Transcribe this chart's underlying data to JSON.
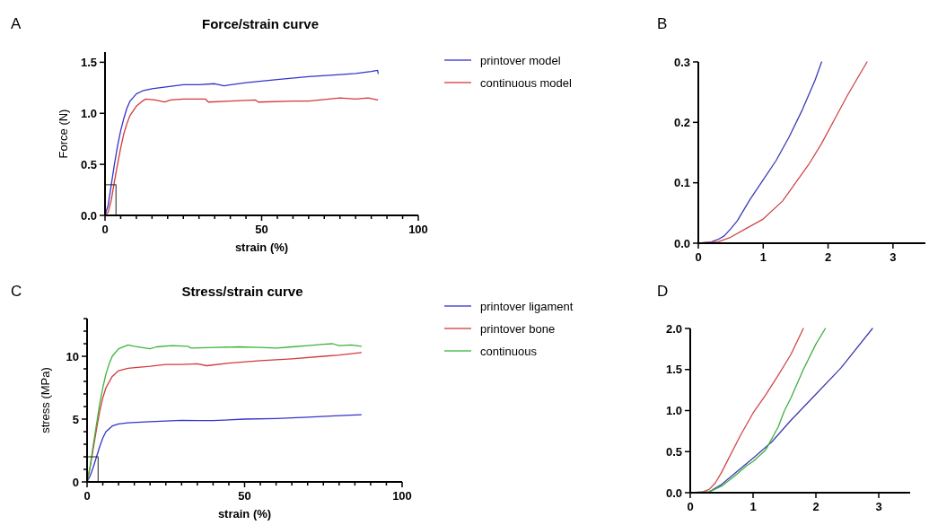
{
  "chart_data": [
    {
      "type": "line",
      "title": "Force/strain curve",
      "annotations": [
        "A"
      ],
      "xlabel": "strain (%)",
      "ylabel": "Force (N)",
      "xlim": [
        0,
        100
      ],
      "ylim": [
        0,
        1.6
      ],
      "xticks": [
        0,
        {
          "value": 5,
          "label": null
        },
        {
          "value": 10,
          "label": null
        },
        {
          "value": 15,
          "label": null
        },
        {
          "value": 20,
          "label": null
        },
        {
          "value": 25,
          "label": null
        },
        {
          "value": 30,
          "label": null
        },
        {
          "value": 35,
          "label": null
        },
        {
          "value": 40,
          "label": null
        },
        {
          "value": 45,
          "label": null
        },
        50,
        {
          "value": 55,
          "label": null
        },
        {
          "value": 60,
          "label": null
        },
        {
          "value": 65,
          "label": null
        },
        {
          "value": 70,
          "label": null
        },
        {
          "value": 75,
          "label": null
        },
        {
          "value": 80,
          "label": null
        },
        {
          "value": 85,
          "label": null
        },
        {
          "value": 90,
          "label": null
        },
        {
          "value": 95,
          "label": null
        },
        100
      ],
      "yticks": [
        {
          "value": 0,
          "label": "0.0"
        },
        {
          "value": 0.5,
          "label": "0.5"
        },
        {
          "value": 1,
          "label": "1.0"
        },
        {
          "value": 1.5,
          "label": "1.5"
        }
      ],
      "legend": "right",
      "grid": false,
      "line_style": "solid",
      "series": [
        {
          "name": "printover model",
          "color": "#3434cc",
          "x": [
            0,
            1,
            2,
            3,
            4,
            5,
            6,
            7,
            8,
            10,
            12,
            15,
            20,
            25,
            30,
            35,
            38,
            45,
            55,
            65,
            75,
            80,
            85,
            87,
            87.2
          ],
          "values": [
            0,
            0.1,
            0.3,
            0.5,
            0.68,
            0.83,
            0.95,
            1.05,
            1.12,
            1.19,
            1.22,
            1.24,
            1.26,
            1.28,
            1.28,
            1.29,
            1.27,
            1.3,
            1.33,
            1.36,
            1.38,
            1.39,
            1.41,
            1.42,
            1.39
          ]
        },
        {
          "name": "continuous model",
          "color": "#d43a3a",
          "x": [
            0,
            1,
            2,
            3,
            4,
            5,
            6,
            7,
            8,
            10,
            12,
            13,
            16,
            19,
            21,
            25,
            32,
            33,
            40,
            48,
            49,
            60,
            65,
            75,
            80,
            84,
            87
          ],
          "values": [
            0,
            0.03,
            0.15,
            0.33,
            0.5,
            0.66,
            0.8,
            0.9,
            0.98,
            1.07,
            1.12,
            1.14,
            1.13,
            1.11,
            1.13,
            1.14,
            1.14,
            1.11,
            1.12,
            1.13,
            1.11,
            1.12,
            1.12,
            1.15,
            1.14,
            1.15,
            1.13
          ]
        }
      ]
    },
    {
      "type": "line",
      "annotations": [
        "B"
      ],
      "xlim": [
        0,
        3.5
      ],
      "ylim": [
        0,
        0.3
      ],
      "xticks": [
        0,
        1,
        2,
        3
      ],
      "yticks": [
        {
          "value": 0,
          "label": "0.0"
        },
        {
          "value": 0.1,
          "label": "0.1"
        },
        {
          "value": 0.2,
          "label": "0.2"
        },
        {
          "value": 0.3,
          "label": "0.3"
        }
      ],
      "grid": false,
      "line_style": "solid",
      "series": [
        {
          "color": "#3c3cb4",
          "x": [
            0,
            0.2,
            0.3,
            0.4,
            0.5,
            0.6,
            0.8,
            1.0,
            1.2,
            1.4,
            1.6,
            1.8,
            1.9
          ],
          "values": [
            0,
            0.002,
            0.006,
            0.012,
            0.024,
            0.037,
            0.073,
            0.105,
            0.137,
            0.176,
            0.22,
            0.27,
            0.3
          ]
        },
        {
          "color": "#d04848",
          "x": [
            0,
            0.3,
            0.5,
            0.7,
            1.0,
            1.3,
            1.5,
            1.7,
            1.9,
            2.1,
            2.3,
            2.6
          ],
          "values": [
            0,
            0.002,
            0.01,
            0.022,
            0.04,
            0.07,
            0.1,
            0.13,
            0.165,
            0.205,
            0.245,
            0.3
          ]
        }
      ]
    },
    {
      "type": "line",
      "title": "Stress/strain curve",
      "annotations": [
        "C"
      ],
      "xlabel": "strain (%)",
      "ylabel": "stress (MPa)",
      "xlim": [
        0,
        100
      ],
      "ylim": [
        0,
        13
      ],
      "xticks": [
        0,
        {
          "value": 5,
          "label": null
        },
        {
          "value": 10,
          "label": null
        },
        {
          "value": 15,
          "label": null
        },
        {
          "value": 20,
          "label": null
        },
        {
          "value": 25,
          "label": null
        },
        {
          "value": 30,
          "label": null
        },
        {
          "value": 35,
          "label": null
        },
        {
          "value": 40,
          "label": null
        },
        {
          "value": 45,
          "label": null
        },
        50,
        {
          "value": 55,
          "label": null
        },
        {
          "value": 60,
          "label": null
        },
        {
          "value": 65,
          "label": null
        },
        {
          "value": 70,
          "label": null
        },
        {
          "value": 75,
          "label": null
        },
        {
          "value": 80,
          "label": null
        },
        {
          "value": 85,
          "label": null
        },
        {
          "value": 90,
          "label": null
        },
        {
          "value": 95,
          "label": null
        },
        100
      ],
      "yticks": [
        0,
        {
          "value": 1,
          "label": null
        },
        {
          "value": 2,
          "label": null
        },
        {
          "value": 3,
          "label": null
        },
        {
          "value": 4,
          "label": null
        },
        5,
        {
          "value": 6,
          "label": null
        },
        {
          "value": 7,
          "label": null
        },
        {
          "value": 8,
          "label": null
        },
        {
          "value": 9,
          "label": null
        },
        10,
        {
          "value": 11,
          "label": null
        },
        {
          "value": 12,
          "label": null
        },
        {
          "value": 13,
          "label": null
        }
      ],
      "legend": "right",
      "grid": false,
      "line_style": "solid",
      "series": [
        {
          "name": "printover ligament",
          "color": "#3434cc",
          "x": [
            0,
            1,
            2,
            3,
            4,
            5,
            6,
            8,
            10,
            13,
            20,
            30,
            35,
            40,
            50,
            60,
            70,
            80,
            87
          ],
          "values": [
            0,
            0.5,
            1.2,
            2.0,
            2.8,
            3.5,
            4.0,
            4.45,
            4.62,
            4.7,
            4.8,
            4.9,
            4.88,
            4.88,
            5.0,
            5.05,
            5.15,
            5.28,
            5.35
          ]
        },
        {
          "name": "printover bone",
          "color": "#d43a3a",
          "x": [
            0,
            1,
            2,
            3,
            4,
            5,
            6,
            8,
            10,
            13,
            20,
            25,
            30,
            35,
            38,
            45,
            55,
            65,
            75,
            80,
            87
          ],
          "values": [
            0,
            1.2,
            2.7,
            4.2,
            5.6,
            6.7,
            7.5,
            8.4,
            8.85,
            9.05,
            9.2,
            9.35,
            9.35,
            9.4,
            9.25,
            9.45,
            9.65,
            9.8,
            10.0,
            10.1,
            10.3
          ]
        },
        {
          "name": "continuous",
          "color": "#3cb43c",
          "x": [
            0,
            1,
            2,
            3,
            4,
            5,
            6,
            7,
            8,
            10,
            13,
            15,
            20,
            22,
            27,
            32,
            33,
            40,
            48,
            55,
            60,
            65,
            70,
            75,
            78,
            80,
            84,
            87
          ],
          "values": [
            0,
            1.3,
            3.0,
            4.6,
            6.2,
            7.5,
            8.6,
            9.4,
            10.0,
            10.6,
            10.9,
            10.8,
            10.6,
            10.75,
            10.85,
            10.8,
            10.65,
            10.7,
            10.75,
            10.7,
            10.65,
            10.75,
            10.85,
            10.95,
            11.0,
            10.85,
            10.9,
            10.8
          ]
        }
      ]
    },
    {
      "type": "line",
      "annotations": [
        "D"
      ],
      "xlim": [
        0,
        3.5
      ],
      "ylim": [
        0,
        2
      ],
      "xticks": [
        0,
        1,
        2,
        3
      ],
      "yticks": [
        {
          "value": 0,
          "label": "0.0"
        },
        {
          "value": 0.5,
          "label": "0.5"
        },
        {
          "value": 1,
          "label": "1.0"
        },
        {
          "value": 1.5,
          "label": "1.5"
        },
        {
          "value": 2,
          "label": "2.0"
        }
      ],
      "grid": false,
      "line_style": "solid",
      "series": [
        {
          "color": "#3c3cb4",
          "x": [
            0,
            0.3,
            0.5,
            0.7,
            1.0,
            1.3,
            1.6,
            2.0,
            2.4,
            2.9
          ],
          "values": [
            0,
            0.01,
            0.1,
            0.23,
            0.42,
            0.62,
            0.88,
            1.2,
            1.52,
            2.0
          ]
        },
        {
          "color": "#d04848",
          "x": [
            0,
            0.2,
            0.3,
            0.4,
            0.5,
            0.6,
            0.8,
            1.0,
            1.2,
            1.4,
            1.6,
            1.8
          ],
          "values": [
            0,
            0.01,
            0.04,
            0.12,
            0.25,
            0.4,
            0.7,
            0.97,
            1.19,
            1.43,
            1.68,
            2.0
          ]
        },
        {
          "color": "#40b040",
          "x": [
            0,
            0.3,
            0.5,
            0.7,
            0.9,
            1.0,
            1.2,
            1.4,
            1.5,
            1.6,
            1.8,
            2.0,
            2.15
          ],
          "values": [
            0,
            0.01,
            0.08,
            0.2,
            0.33,
            0.38,
            0.52,
            0.8,
            1.0,
            1.15,
            1.5,
            1.81,
            2.0
          ]
        }
      ]
    }
  ]
}
